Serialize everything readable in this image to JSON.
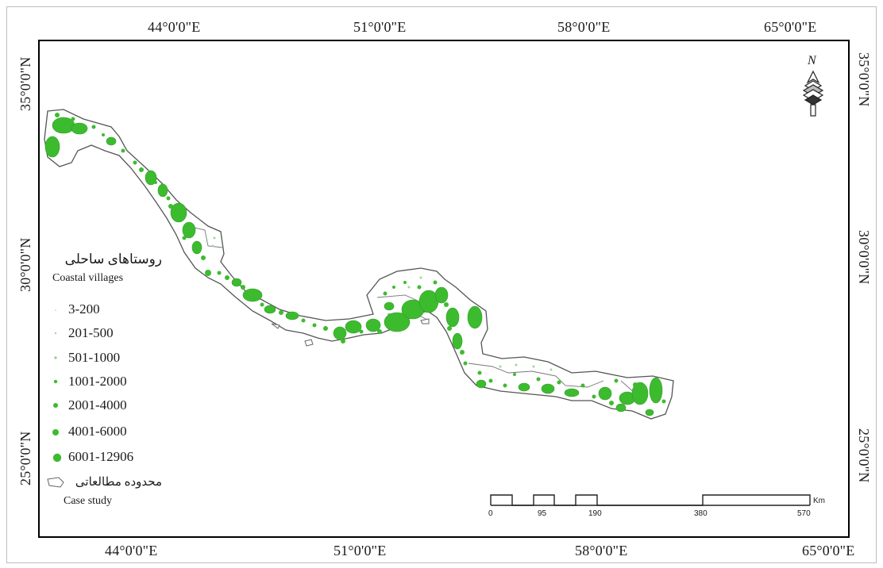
{
  "graticule": {
    "top": [
      "44°0'0\"E",
      "51°0'0\"E",
      "58°0'0\"E",
      "65°0'0\"E"
    ],
    "bottom": [
      "44°0'0\"E",
      "51°0'0\"E",
      "58°0'0\"E",
      "65°0'0\"E"
    ],
    "left": [
      "35°0'0\"N",
      "30°0'0\"N",
      "25°0'0\"N"
    ],
    "right": [
      "35°0'0\"N",
      "30°0'0\"N",
      "25°0'0\"N"
    ]
  },
  "north_arrow": {
    "letter": "N",
    "icon": "north-arrow-icon"
  },
  "legend": {
    "title_fa": "روستاهای ساحلی",
    "title_en": "Coastal villages",
    "classes": [
      "3-200",
      "201-500",
      "501-1000",
      "1001-2000",
      "2001-4000",
      "4001-6000",
      "6001-12906"
    ],
    "study_area_fa": "محدوده مطالعاتی",
    "study_area_en": "Case study"
  },
  "scale_bar": {
    "labels": [
      "0",
      "95",
      "190",
      "380",
      "570"
    ],
    "unit": "Km"
  },
  "colors": {
    "village": "#3dbb2f",
    "village_dark": "#2e9e25",
    "boundary": "#555555",
    "frame": "#000000"
  }
}
